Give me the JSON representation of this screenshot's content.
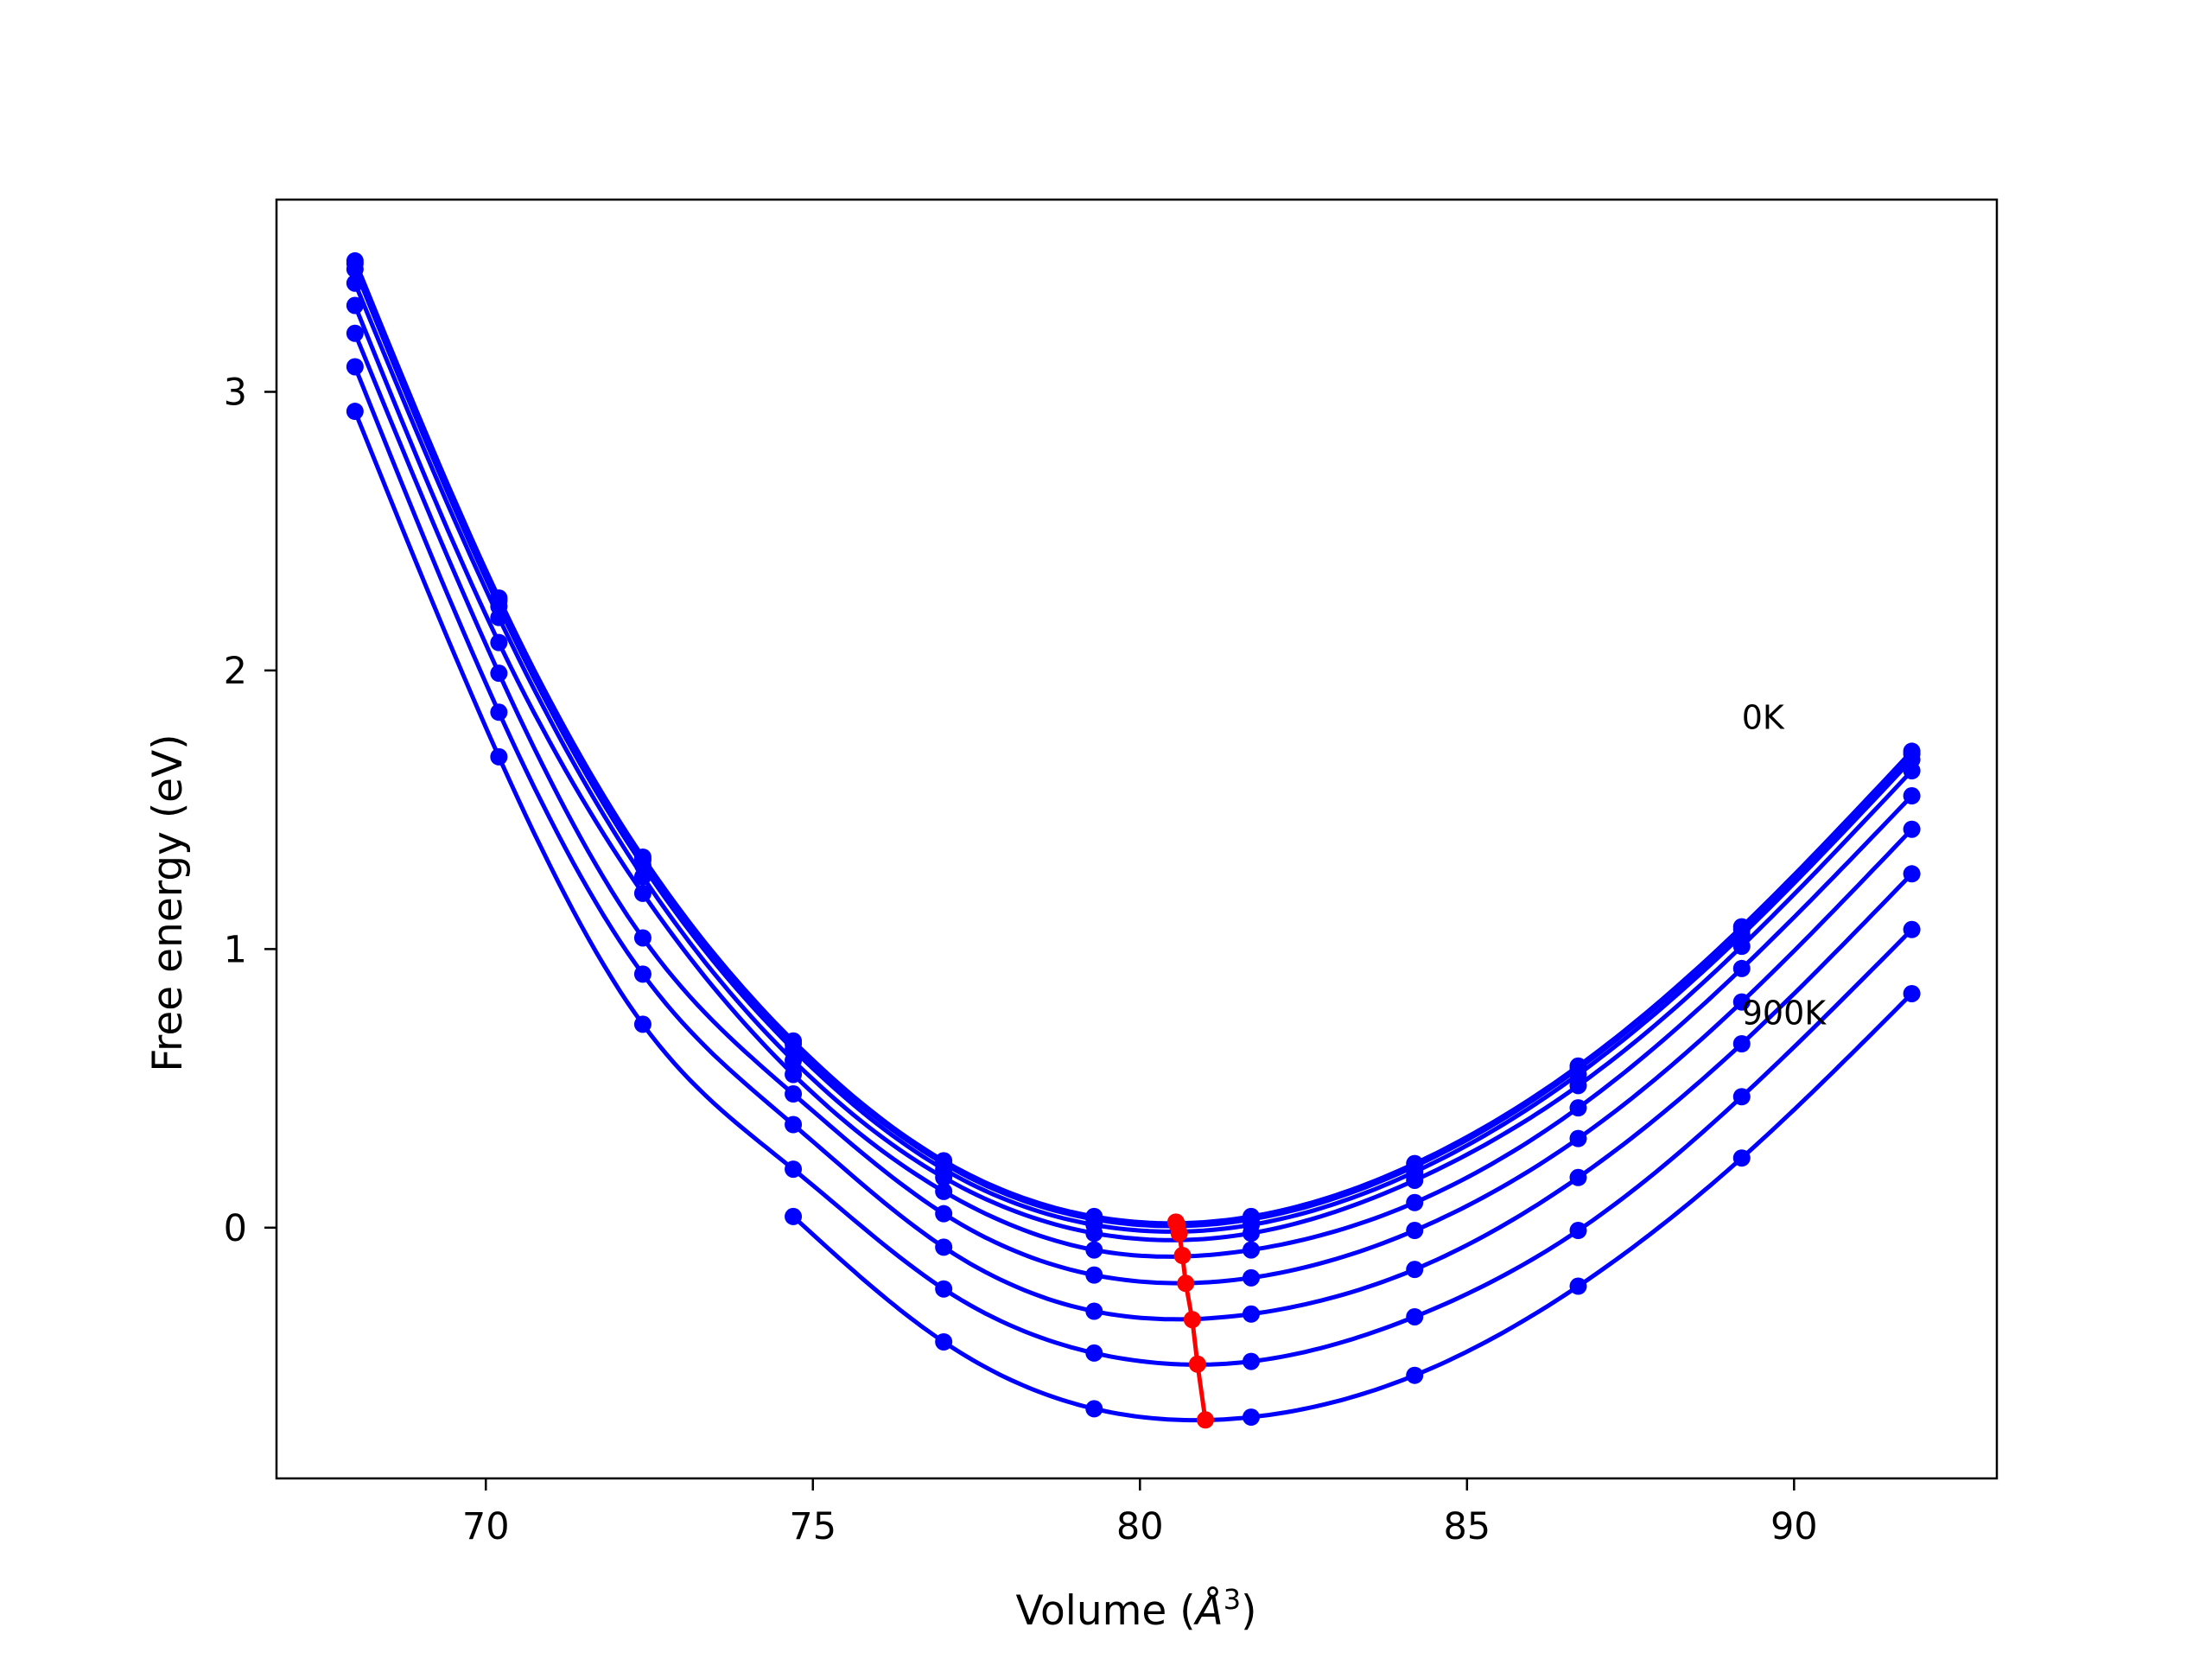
{
  "chart_data": {
    "type": "line",
    "title": "",
    "xlabel": "Volume (Å³)",
    "xlabel_plain": "Volume (",
    "xlabel_unit": "Å",
    "xlabel_exp": "3",
    "xlabel_close": ")",
    "ylabel": "Free energy (eV)",
    "xlim": [
      66.8,
      93.1
    ],
    "ylim": [
      -0.9,
      3.69
    ],
    "xticks": [
      70,
      75,
      80,
      85,
      90
    ],
    "xtick_labels": [
      "70",
      "75",
      "80",
      "85",
      "90"
    ],
    "yticks": [
      0,
      1,
      2,
      3
    ],
    "ytick_labels": [
      "0",
      "1",
      "2",
      "3"
    ],
    "grid": false,
    "legend": "none",
    "x": [
      68.0,
      70.2,
      72.4,
      74.7,
      77.0,
      79.3,
      81.7,
      84.2,
      86.7,
      89.2,
      91.8
    ],
    "series": [
      {
        "values": [
          3.47,
          2.26,
          1.33,
          0.67,
          0.24,
          0.04,
          0.04,
          0.23,
          0.58,
          1.08,
          1.71
        ]
      },
      {
        "values": [
          3.46,
          2.25,
          1.32,
          0.66,
          0.23,
          0.03,
          0.03,
          0.22,
          0.57,
          1.07,
          1.7
        ]
      },
      {
        "values": [
          3.44,
          2.23,
          1.3,
          0.64,
          0.21,
          0.01,
          0.01,
          0.2,
          0.55,
          1.05,
          1.68
        ]
      },
      {
        "values": [
          3.39,
          2.19,
          1.26,
          0.6,
          0.18,
          -0.02,
          -0.02,
          0.17,
          0.51,
          1.01,
          1.64
        ]
      },
      {
        "values": [
          3.31,
          2.1,
          1.2,
          0.55,
          0.13,
          -0.08,
          -0.08,
          0.09,
          0.43,
          0.93,
          1.55
        ]
      },
      {
        "values": [
          3.21,
          1.99,
          1.04,
          0.48,
          0.05,
          -0.17,
          -0.18,
          -0.01,
          0.32,
          0.81,
          1.43
        ]
      },
      {
        "values": [
          3.09,
          1.85,
          0.91,
          0.37,
          -0.07,
          -0.3,
          -0.31,
          -0.15,
          0.18,
          0.66,
          1.27
        ]
      },
      {
        "values": [
          2.93,
          1.69,
          0.73,
          0.21,
          -0.22,
          -0.45,
          -0.48,
          -0.32,
          -0.01,
          0.47,
          1.07
        ]
      },
      {
        "values": [
          null,
          null,
          null,
          0.04,
          -0.41,
          -0.65,
          -0.68,
          -0.53,
          -0.21,
          0.25,
          0.84
        ]
      }
    ],
    "minima": {
      "color": "#ff0000",
      "x": [
        80.55,
        80.57,
        80.6,
        80.65,
        80.7,
        80.8,
        80.88,
        81.0
      ],
      "y": [
        0.02,
        0.01,
        -0.02,
        -0.1,
        -0.2,
        -0.33,
        -0.49,
        -0.69
      ]
    },
    "annotations": [
      {
        "text": "0K",
        "x": 89.2,
        "y": 1.79
      },
      {
        "text": "900K",
        "x": 89.2,
        "y": 0.73
      }
    ],
    "series_color": "#0000ff"
  }
}
